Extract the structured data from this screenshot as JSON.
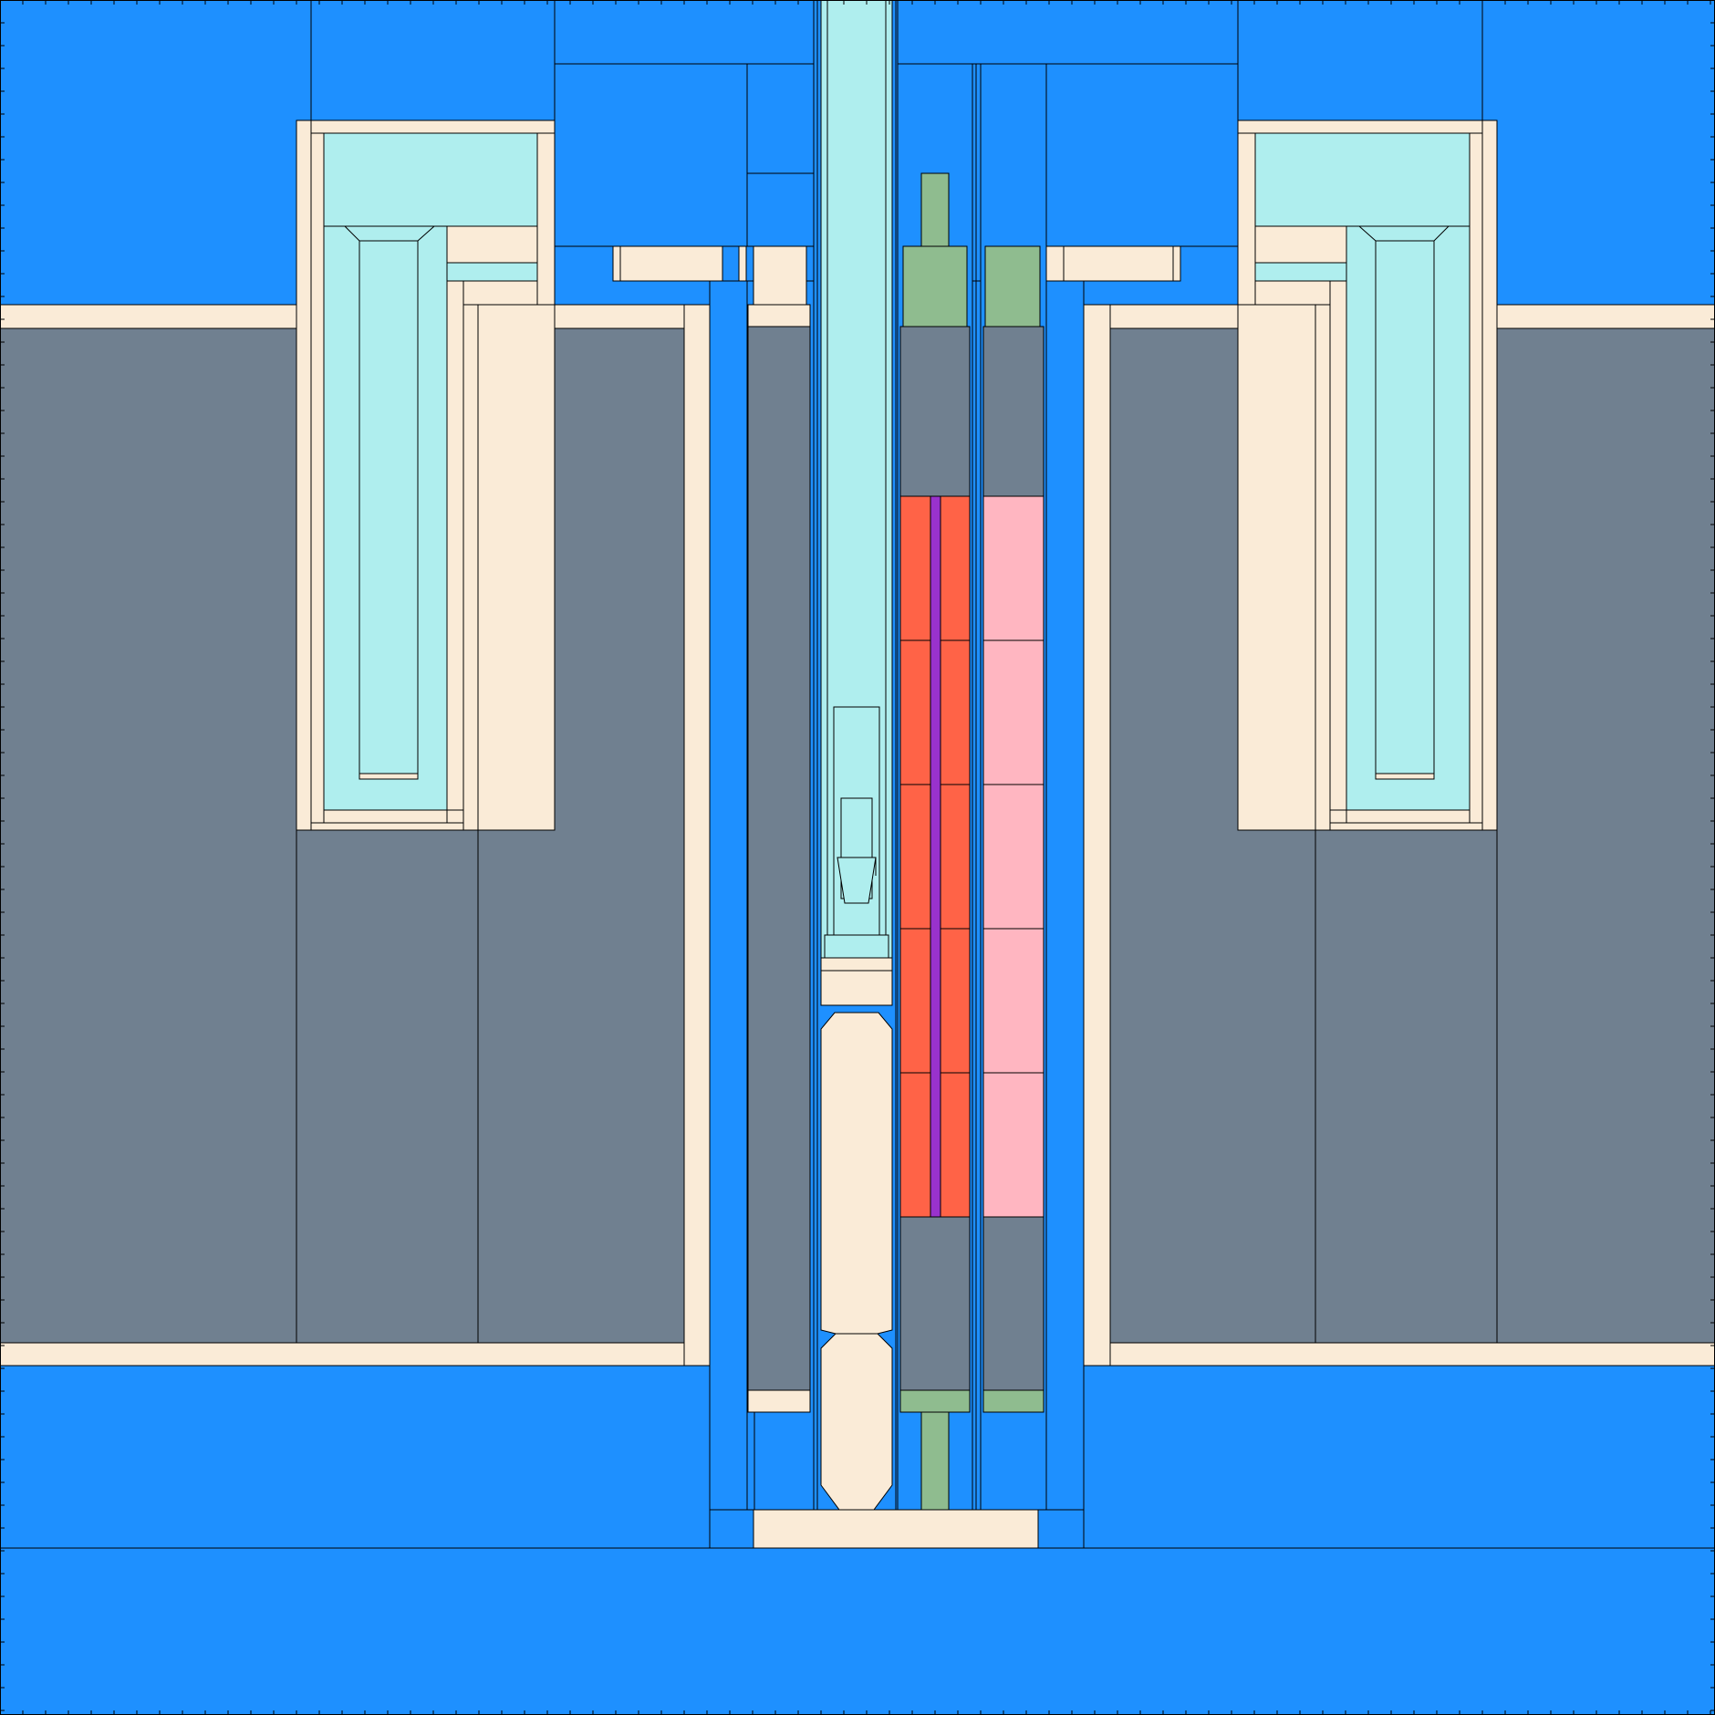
{
  "palette": {
    "water": "#1e90ff",
    "structure": "#faebd7",
    "absorber": "#708090",
    "plenum_gas": "#afeeee",
    "spring": "#8fbc8f",
    "fuel_high": "#ff6347",
    "fuel_low": "#ffb6c1",
    "thermocouple": "#9932cc",
    "edge": "#000000"
  },
  "materials": [
    {
      "key": "water",
      "name": "water-coolant"
    },
    {
      "key": "structure",
      "name": "structural-steel"
    },
    {
      "key": "absorber",
      "name": "reflector-block"
    },
    {
      "key": "plenum_gas",
      "name": "plenum-gas"
    },
    {
      "key": "spring",
      "name": "spring-end-fitting"
    },
    {
      "key": "fuel_high",
      "name": "fuel-pellet-stack"
    },
    {
      "key": "fuel_low",
      "name": "fuel-pellet-stack-low-enrichment"
    },
    {
      "key": "thermocouple",
      "name": "center-thermocouple"
    }
  ]
}
